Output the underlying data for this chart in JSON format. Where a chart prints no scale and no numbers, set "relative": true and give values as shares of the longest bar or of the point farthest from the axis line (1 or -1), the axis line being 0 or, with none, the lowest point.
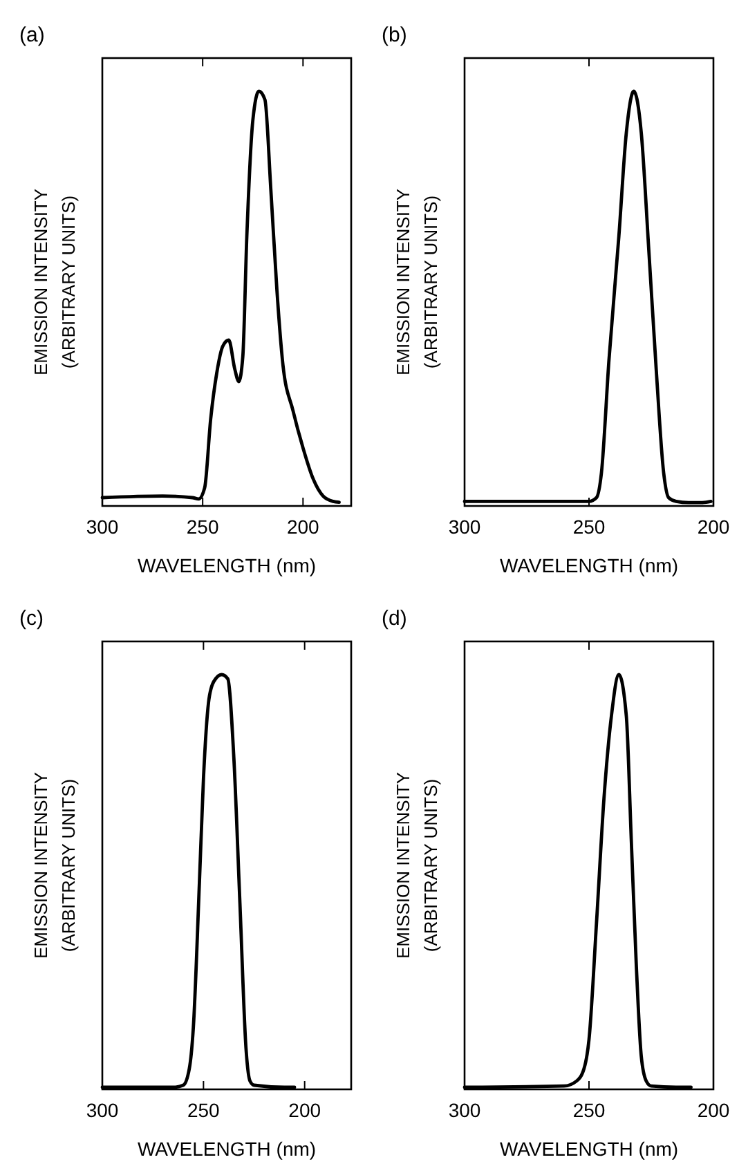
{
  "chart_data": [
    {
      "type": "line",
      "title": "(a)",
      "xlabel": "WAVELENGTH (nm)",
      "ylabel": "EMISSION INTENSITY\n(ARBITRARY UNITS)",
      "relative": true,
      "xlim": [
        300,
        176
      ],
      "xticks": [
        300,
        250,
        200
      ],
      "grid": false,
      "marker": "none",
      "line_style": "solid",
      "series": [
        {
          "color": "#000000",
          "x": [
            300,
            270,
            255,
            252,
            249,
            246,
            243,
            240,
            237,
            234,
            232,
            230,
            228,
            225,
            222,
            219,
            216,
            213,
            210,
            205,
            200,
            195,
            190,
            185,
            182
          ],
          "values": [
            0.02,
            0.024,
            0.02,
            0.017,
            0.044,
            0.21,
            0.32,
            0.385,
            0.4,
            0.33,
            0.3,
            0.36,
            0.65,
            0.93,
            1.0,
            0.98,
            0.76,
            0.52,
            0.34,
            0.23,
            0.14,
            0.066,
            0.024,
            0.011,
            0.009
          ]
        }
      ]
    },
    {
      "type": "line",
      "title": "(b)",
      "xlabel": "WAVELENGTH (nm)",
      "ylabel": "EMISSION INTENSITY\n(ARBITRARY UNITS)",
      "relative": true,
      "xlim": [
        300,
        200
      ],
      "xticks": [
        300,
        250,
        200
      ],
      "grid": false,
      "marker": "none",
      "line_style": "solid",
      "series": [
        {
          "color": "#000000",
          "x": [
            300,
            255,
            250,
            247,
            245,
            242,
            238,
            235,
            232,
            229,
            226,
            223,
            220,
            218,
            215,
            210,
            205,
            201
          ],
          "values": [
            0.011,
            0.011,
            0.011,
            0.02,
            0.08,
            0.35,
            0.65,
            0.9,
            1.0,
            0.9,
            0.62,
            0.33,
            0.08,
            0.02,
            0.011,
            0.008,
            0.008,
            0.011
          ]
        }
      ]
    },
    {
      "type": "line",
      "title": "(c)",
      "xlabel": "WAVELENGTH (nm)",
      "ylabel": "EMISSION INTENSITY\n(ARBITRARY UNITS)",
      "relative": true,
      "xlim": [
        300,
        177
      ],
      "xticks": [
        300,
        250,
        200
      ],
      "grid": false,
      "marker": "none",
      "line_style": "solid",
      "series": [
        {
          "color": "#000000",
          "x": [
            300,
            265,
            260,
            257,
            255,
            252,
            250,
            247,
            244,
            241,
            238,
            235,
            232,
            229,
            227,
            225,
            210,
            205
          ],
          "values": [
            0.005,
            0.005,
            0.01,
            0.05,
            0.15,
            0.5,
            0.75,
            0.95,
            0.99,
            1.0,
            0.99,
            0.8,
            0.45,
            0.1,
            0.02,
            0.01,
            0.005,
            0.005
          ]
        }
      ]
    },
    {
      "type": "line",
      "title": "(d)",
      "xlabel": "WAVELENGTH (nm)",
      "ylabel": "EMISSION INTENSITY\n(ARBITRARY UNITS)",
      "relative": true,
      "xlim": [
        300,
        200
      ],
      "xticks": [
        300,
        250,
        200
      ],
      "grid": false,
      "marker": "none",
      "line_style": "solid",
      "series": [
        {
          "color": "#000000",
          "x": [
            300,
            260,
            255,
            252,
            250,
            247,
            244,
            241,
            238,
            235,
            233,
            231,
            229,
            227,
            225,
            215,
            209
          ],
          "values": [
            0.005,
            0.008,
            0.02,
            0.05,
            0.12,
            0.4,
            0.7,
            0.9,
            1.0,
            0.9,
            0.6,
            0.3,
            0.08,
            0.02,
            0.008,
            0.005,
            0.005
          ]
        }
      ]
    }
  ]
}
